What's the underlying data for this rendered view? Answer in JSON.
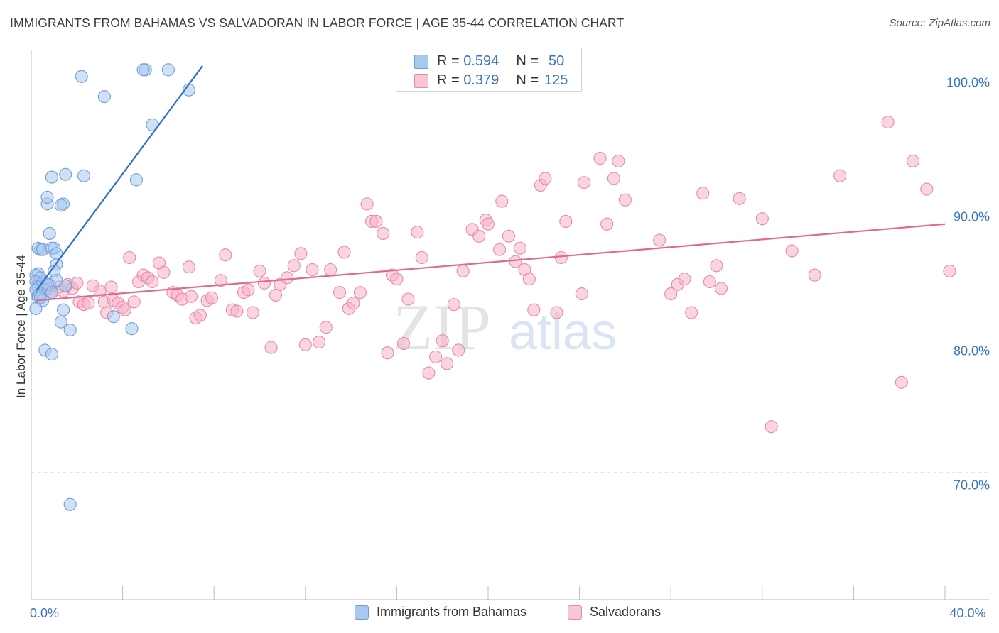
{
  "header": {
    "title": "IMMIGRANTS FROM BAHAMAS VS SALVADORAN IN LABOR FORCE | AGE 35-44 CORRELATION CHART",
    "source": "Source: ZipAtlas.com"
  },
  "watermark": {
    "zip": "ZIP",
    "atlas": "atlas"
  },
  "legend": {
    "rows": [
      {
        "r_label": "R =",
        "r_value": "0.594",
        "n_label": "N =",
        "n_value": "50"
      },
      {
        "r_label": "R =",
        "r_value": "0.379",
        "n_label": "N =",
        "n_value": "125"
      }
    ]
  },
  "bottom_legend": {
    "items": [
      "Immigrants from Bahamas",
      "Salvadorans"
    ]
  },
  "colors": {
    "blue_fill": "#a9c8f0",
    "blue_stroke": "#6f9ed8",
    "blue_line": "#2f6fce",
    "pink_fill": "#f6b3c8",
    "pink_stroke": "#e889a8",
    "pink_line": "#e06893",
    "axis_label": "#3a72c4",
    "grid": "#e3e3e3"
  },
  "chart_data": {
    "type": "scatter",
    "title": "IMMIGRANTS FROM BAHAMAS VS SALVADORAN IN LABOR FORCE | AGE 35-44 CORRELATION CHART",
    "xlabel": "",
    "ylabel": "In Labor Force | Age 35-44",
    "xlim": [
      0,
      40
    ],
    "ylim": [
      60.5,
      101.5
    ],
    "x_tick_labels": [
      {
        "value": 0,
        "label": "0.0%"
      },
      {
        "value": 40,
        "label": "40.0%"
      }
    ],
    "y_tick_labels": [
      {
        "value": 100,
        "label": "100.0%"
      },
      {
        "value": 90,
        "label": "90.0%"
      },
      {
        "value": 80,
        "label": "80.0%"
      },
      {
        "value": 70,
        "label": "70.0%"
      }
    ],
    "grid": true,
    "legend_position": "top-center",
    "series": [
      {
        "name": "Immigrants from Bahamas",
        "color": "#a9c8f0",
        "points": [
          [
            2.2,
            99.5
          ],
          [
            5.0,
            100.0
          ],
          [
            4.9,
            100.0
          ],
          [
            6.0,
            100.0
          ],
          [
            3.2,
            98.0
          ],
          [
            6.9,
            98.5
          ],
          [
            5.3,
            95.9
          ],
          [
            0.9,
            92.0
          ],
          [
            1.5,
            92.2
          ],
          [
            2.3,
            92.1
          ],
          [
            4.6,
            91.8
          ],
          [
            0.7,
            90.0
          ],
          [
            0.7,
            90.5
          ],
          [
            1.4,
            90.0
          ],
          [
            1.3,
            89.9
          ],
          [
            0.8,
            87.8
          ],
          [
            0.4,
            86.6
          ],
          [
            0.3,
            86.7
          ],
          [
            0.5,
            86.6
          ],
          [
            0.9,
            86.7
          ],
          [
            1.0,
            86.7
          ],
          [
            1.1,
            86.3
          ],
          [
            1.1,
            85.5
          ],
          [
            1.0,
            85.0
          ],
          [
            0.3,
            84.8
          ],
          [
            0.2,
            84.7
          ],
          [
            0.4,
            84.5
          ],
          [
            0.2,
            84.2
          ],
          [
            0.5,
            84.1
          ],
          [
            0.8,
            84.0
          ],
          [
            1.1,
            84.3
          ],
          [
            1.5,
            83.9
          ],
          [
            0.3,
            83.8
          ],
          [
            0.2,
            83.6
          ],
          [
            0.6,
            83.6
          ],
          [
            0.3,
            83.2
          ],
          [
            0.3,
            83.0
          ],
          [
            0.5,
            82.8
          ],
          [
            0.2,
            82.2
          ],
          [
            1.4,
            82.1
          ],
          [
            3.6,
            81.6
          ],
          [
            1.3,
            81.2
          ],
          [
            1.7,
            80.6
          ],
          [
            4.4,
            80.7
          ],
          [
            0.6,
            79.1
          ],
          [
            0.9,
            78.8
          ],
          [
            1.7,
            67.6
          ],
          [
            0.7,
            84.0
          ],
          [
            0.9,
            83.4
          ],
          [
            0.4,
            83.0
          ]
        ]
      },
      {
        "name": "Salvadorans",
        "color": "#f6b3c8",
        "points": [
          [
            0.3,
            84.1
          ],
          [
            0.5,
            84.2
          ],
          [
            0.6,
            83.6
          ],
          [
            0.8,
            83.7
          ],
          [
            0.9,
            83.5
          ],
          [
            1.2,
            83.8
          ],
          [
            1.4,
            83.5
          ],
          [
            1.6,
            84.0
          ],
          [
            1.8,
            83.7
          ],
          [
            2.0,
            84.1
          ],
          [
            2.1,
            82.7
          ],
          [
            2.3,
            82.5
          ],
          [
            2.5,
            82.6
          ],
          [
            2.7,
            83.9
          ],
          [
            3.0,
            83.5
          ],
          [
            3.2,
            82.7
          ],
          [
            3.3,
            81.9
          ],
          [
            3.5,
            83.8
          ],
          [
            3.6,
            82.8
          ],
          [
            3.8,
            82.6
          ],
          [
            4.0,
            82.3
          ],
          [
            4.1,
            82.1
          ],
          [
            4.3,
            86.0
          ],
          [
            4.5,
            82.7
          ],
          [
            4.7,
            84.2
          ],
          [
            4.9,
            84.7
          ],
          [
            5.1,
            84.5
          ],
          [
            5.3,
            84.2
          ],
          [
            5.6,
            85.6
          ],
          [
            5.8,
            84.9
          ],
          [
            6.2,
            83.4
          ],
          [
            6.4,
            83.2
          ],
          [
            6.6,
            82.9
          ],
          [
            6.9,
            85.3
          ],
          [
            7.0,
            83.1
          ],
          [
            7.2,
            81.5
          ],
          [
            7.4,
            81.7
          ],
          [
            7.7,
            82.8
          ],
          [
            7.9,
            83.0
          ],
          [
            8.3,
            84.3
          ],
          [
            8.5,
            86.2
          ],
          [
            8.8,
            82.1
          ],
          [
            9.0,
            82.0
          ],
          [
            9.3,
            83.4
          ],
          [
            9.5,
            83.6
          ],
          [
            9.7,
            81.9
          ],
          [
            10.0,
            85.0
          ],
          [
            10.2,
            84.1
          ],
          [
            10.5,
            79.3
          ],
          [
            10.7,
            83.2
          ],
          [
            10.9,
            84.0
          ],
          [
            11.2,
            84.5
          ],
          [
            11.5,
            85.4
          ],
          [
            11.8,
            86.3
          ],
          [
            12.0,
            79.5
          ],
          [
            12.3,
            85.1
          ],
          [
            12.6,
            79.7
          ],
          [
            12.9,
            80.8
          ],
          [
            13.1,
            85.1
          ],
          [
            13.5,
            83.4
          ],
          [
            13.7,
            86.4
          ],
          [
            13.9,
            82.2
          ],
          [
            14.1,
            82.6
          ],
          [
            14.4,
            83.4
          ],
          [
            14.7,
            90.0
          ],
          [
            14.9,
            88.7
          ],
          [
            15.1,
            88.7
          ],
          [
            15.4,
            87.8
          ],
          [
            15.6,
            78.9
          ],
          [
            15.8,
            84.7
          ],
          [
            16.0,
            84.4
          ],
          [
            16.3,
            79.6
          ],
          [
            16.5,
            82.9
          ],
          [
            16.9,
            87.9
          ],
          [
            17.1,
            86.0
          ],
          [
            17.4,
            77.4
          ],
          [
            17.7,
            78.6
          ],
          [
            18.0,
            79.8
          ],
          [
            18.2,
            78.1
          ],
          [
            18.5,
            82.5
          ],
          [
            18.7,
            79.1
          ],
          [
            18.9,
            85.0
          ],
          [
            19.3,
            88.1
          ],
          [
            19.6,
            87.6
          ],
          [
            19.9,
            88.8
          ],
          [
            20.0,
            88.5
          ],
          [
            20.5,
            86.6
          ],
          [
            20.6,
            90.2
          ],
          [
            20.9,
            87.6
          ],
          [
            21.2,
            85.7
          ],
          [
            21.4,
            86.7
          ],
          [
            21.6,
            85.1
          ],
          [
            21.8,
            84.4
          ],
          [
            22.0,
            82.1
          ],
          [
            22.3,
            91.4
          ],
          [
            22.5,
            91.9
          ],
          [
            23.0,
            81.9
          ],
          [
            23.2,
            86.0
          ],
          [
            23.4,
            88.7
          ],
          [
            24.1,
            83.3
          ],
          [
            24.2,
            91.6
          ],
          [
            24.9,
            93.4
          ],
          [
            25.2,
            88.5
          ],
          [
            25.5,
            91.9
          ],
          [
            25.7,
            93.2
          ],
          [
            26.0,
            90.3
          ],
          [
            27.5,
            87.3
          ],
          [
            28.0,
            83.3
          ],
          [
            28.3,
            84.0
          ],
          [
            28.6,
            84.4
          ],
          [
            28.9,
            81.9
          ],
          [
            29.4,
            90.8
          ],
          [
            29.7,
            84.2
          ],
          [
            30.0,
            85.4
          ],
          [
            30.2,
            83.7
          ],
          [
            31.0,
            90.4
          ],
          [
            32.0,
            88.9
          ],
          [
            32.4,
            73.4
          ],
          [
            33.3,
            86.5
          ],
          [
            34.3,
            84.7
          ],
          [
            35.4,
            92.1
          ],
          [
            37.5,
            96.1
          ],
          [
            38.1,
            76.7
          ],
          [
            38.6,
            93.2
          ],
          [
            39.2,
            91.1
          ],
          [
            40.2,
            85.0
          ]
        ]
      }
    ],
    "trend_lines": [
      {
        "series": "Immigrants from Bahamas",
        "x": [
          0.2,
          7.5
        ],
        "y": [
          83.5,
          100.3
        ]
      },
      {
        "series": "Salvadorans",
        "x": [
          0.2,
          40.0
        ],
        "y": [
          82.8,
          88.5
        ]
      }
    ]
  }
}
